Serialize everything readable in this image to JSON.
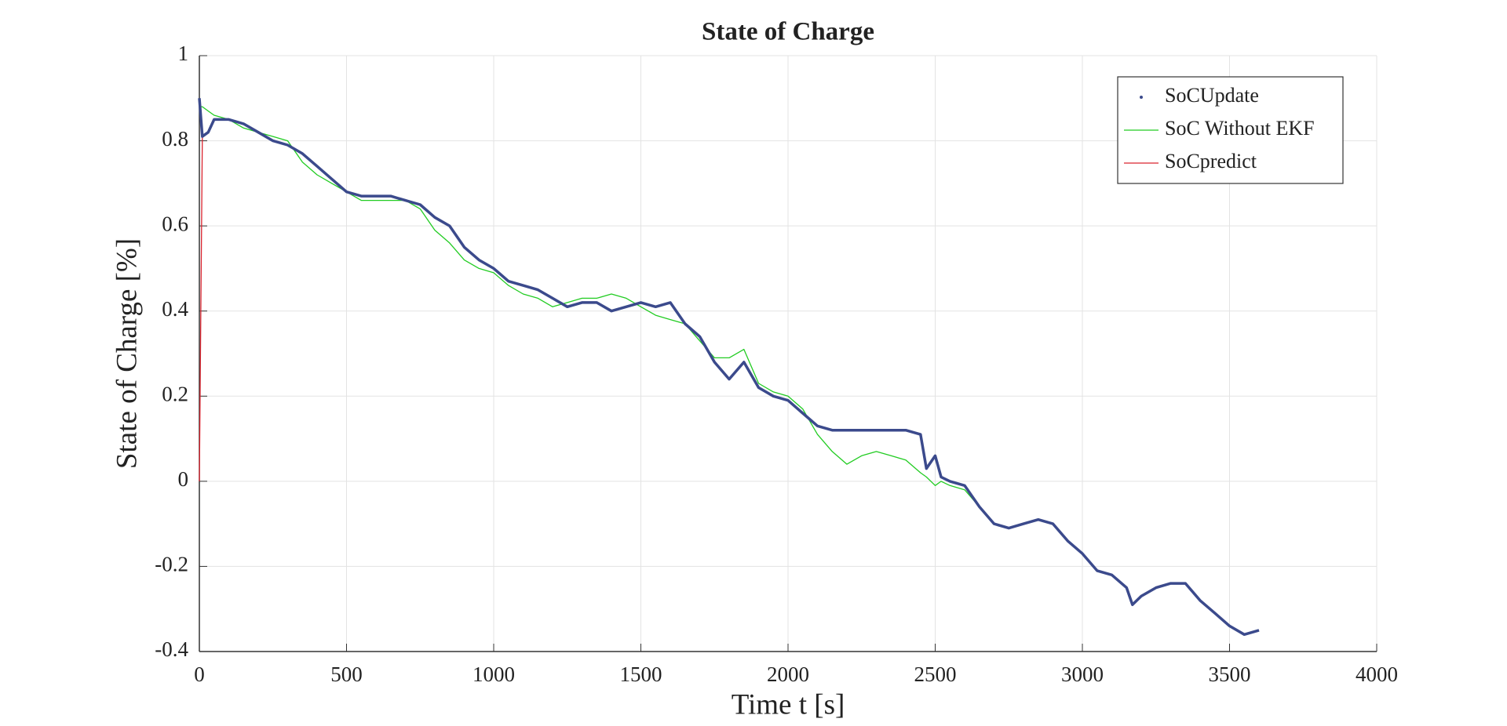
{
  "chart_data": {
    "type": "line",
    "title": "State of Charge",
    "x_label": "Time t [s]",
    "y_label": "State of Charge [%]",
    "xlim": [
      0,
      4000
    ],
    "xticks": [
      0,
      500,
      1000,
      1500,
      2000,
      2500,
      3000,
      3500,
      4000
    ],
    "ylim": [
      -0.4,
      1
    ],
    "yticks": [
      -0.4,
      -0.2,
      0,
      0.2,
      0.4,
      0.6,
      0.8,
      1
    ],
    "grid": true,
    "legend": "upper right",
    "x": [
      0,
      10,
      30,
      50,
      100,
      150,
      200,
      250,
      300,
      350,
      400,
      450,
      500,
      550,
      600,
      650,
      700,
      750,
      800,
      850,
      900,
      950,
      1000,
      1050,
      1100,
      1150,
      1200,
      1250,
      1300,
      1350,
      1400,
      1450,
      1500,
      1550,
      1600,
      1650,
      1700,
      1750,
      1800,
      1850,
      1900,
      1950,
      2000,
      2050,
      2100,
      2150,
      2200,
      2250,
      2300,
      2350,
      2400,
      2450,
      2470,
      2500,
      2520,
      2550,
      2600,
      2650,
      2700,
      2750,
      2800,
      2850,
      2900,
      2950,
      3000,
      3050,
      3100,
      3150,
      3170,
      3200,
      3250,
      3300,
      3350,
      3400,
      3450,
      3500,
      3550,
      3600
    ],
    "series": [
      {
        "name": "SoCUpdate",
        "color": "#3b4a8c",
        "style": "dots",
        "values": [
          0.9,
          0.81,
          0.82,
          0.85,
          0.85,
          0.84,
          0.82,
          0.8,
          0.79,
          0.77,
          0.74,
          0.71,
          0.68,
          0.67,
          0.67,
          0.67,
          0.66,
          0.65,
          0.62,
          0.6,
          0.55,
          0.52,
          0.5,
          0.47,
          0.46,
          0.45,
          0.43,
          0.41,
          0.42,
          0.42,
          0.4,
          0.41,
          0.42,
          0.41,
          0.42,
          0.37,
          0.34,
          0.28,
          0.24,
          0.28,
          0.22,
          0.2,
          0.19,
          0.16,
          0.13,
          0.12,
          0.12,
          0.12,
          0.12,
          0.12,
          0.12,
          0.11,
          0.03,
          0.06,
          0.01,
          0.0,
          -0.01,
          -0.06,
          -0.1,
          -0.11,
          -0.1,
          -0.09,
          -0.1,
          -0.14,
          -0.17,
          -0.21,
          -0.22,
          -0.25,
          -0.29,
          -0.27,
          -0.25,
          -0.24,
          -0.24,
          -0.28,
          -0.31,
          -0.34,
          -0.36,
          -0.35
        ]
      },
      {
        "name": "SoC Without EKF",
        "color": "#22cc22",
        "style": "line",
        "values": [
          0.88,
          0.88,
          0.87,
          0.86,
          0.85,
          0.83,
          0.82,
          0.81,
          0.8,
          0.75,
          0.72,
          0.7,
          0.68,
          0.66,
          0.66,
          0.66,
          0.66,
          0.64,
          0.59,
          0.56,
          0.52,
          0.5,
          0.49,
          0.46,
          0.44,
          0.43,
          0.41,
          0.42,
          0.43,
          0.43,
          0.44,
          0.43,
          0.41,
          0.39,
          0.38,
          0.37,
          0.33,
          0.29,
          0.29,
          0.31,
          0.23,
          0.21,
          0.2,
          0.17,
          0.11,
          0.07,
          0.04,
          0.06,
          0.07,
          0.06,
          0.05,
          0.02,
          0.01,
          -0.01,
          0.0,
          -0.01,
          -0.02,
          -0.06,
          -0.1,
          -0.11,
          -0.1,
          -0.09,
          -0.1,
          -0.14,
          -0.17,
          -0.21,
          -0.22,
          -0.25,
          -0.29,
          -0.27,
          -0.25,
          -0.24,
          -0.24,
          -0.28,
          -0.31,
          -0.34,
          -0.36,
          -0.35
        ]
      },
      {
        "name": "SoCpredict",
        "color": "#d9232e",
        "style": "line",
        "values": [
          0.0,
          0.81,
          0.82,
          0.85,
          0.85,
          0.84,
          0.82,
          0.8,
          0.79,
          0.77,
          0.74,
          0.71,
          0.68,
          0.67,
          0.67,
          0.67,
          0.66,
          0.65,
          0.62,
          0.6,
          0.55,
          0.52,
          0.5,
          0.47,
          0.46,
          0.45,
          0.43,
          0.41,
          0.42,
          0.42,
          0.4,
          0.41,
          0.42,
          0.41,
          0.42,
          0.37,
          0.34,
          0.28,
          0.24,
          0.28,
          0.22,
          0.2,
          0.19,
          0.16,
          0.13,
          0.12,
          0.12,
          0.12,
          0.12,
          0.12,
          0.12,
          0.11,
          0.03,
          0.06,
          0.01,
          0.0,
          -0.01,
          -0.06,
          -0.1,
          -0.11,
          -0.1,
          -0.09,
          -0.1,
          -0.14,
          -0.17,
          -0.21,
          -0.22,
          -0.25,
          -0.29,
          -0.27,
          -0.25,
          -0.24,
          -0.24,
          -0.28,
          -0.31,
          -0.34,
          -0.36,
          -0.35
        ]
      }
    ]
  }
}
